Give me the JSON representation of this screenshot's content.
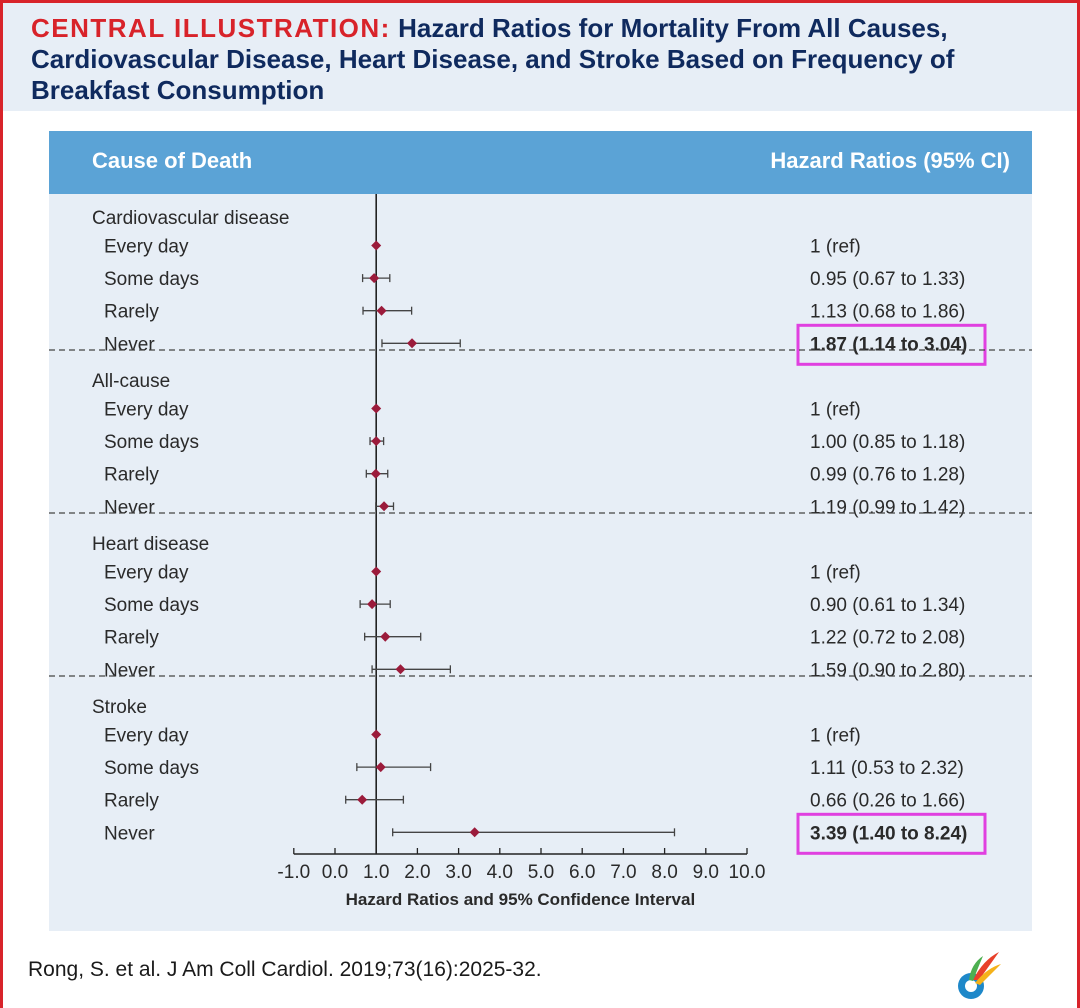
{
  "title": {
    "lead": "CENTRAL ILLUSTRATION:",
    "text": "Hazard Ratios for Mortality From All Causes, Cardiovascular Disease, Heart Disease, and Stroke Based on Frequency of Breakfast Consumption"
  },
  "table_header": {
    "left": "Cause of Death",
    "right": "Hazard Ratios (95% CI)"
  },
  "colors": {
    "title_red": "#d8232a",
    "title_navy": "#0f2a5e",
    "header_blue": "#5ba3d6",
    "panel_bg": "#e7eef6",
    "marker": "#9b1b3b",
    "highlight": "#e040e0"
  },
  "chart_data": {
    "type": "forest",
    "xlabel": "Hazard Ratios and 95% Confidence Interval",
    "xlim": [
      -1.0,
      10.0
    ],
    "xticks": [
      "-1.0",
      "0.0",
      "1.0",
      "2.0",
      "3.0",
      "4.0",
      "5.0",
      "6.0",
      "7.0",
      "8.0",
      "9.0",
      "10.0"
    ],
    "reference_line": 1.0,
    "groups": [
      {
        "name": "Cardiovascular disease",
        "rows": [
          {
            "label": "Every day",
            "hr": 1.0,
            "lo": null,
            "hi": null,
            "text": "1 (ref)",
            "highlight": false
          },
          {
            "label": "Some days",
            "hr": 0.95,
            "lo": 0.67,
            "hi": 1.33,
            "text": "0.95 (0.67 to 1.33)",
            "highlight": false
          },
          {
            "label": "Rarely",
            "hr": 1.13,
            "lo": 0.68,
            "hi": 1.86,
            "text": "1.13 (0.68 to 1.86)",
            "highlight": false
          },
          {
            "label": "Never",
            "hr": 1.87,
            "lo": 1.14,
            "hi": 3.04,
            "text": "1.87 (1.14 to 3.04)",
            "highlight": true
          }
        ]
      },
      {
        "name": "All-cause",
        "rows": [
          {
            "label": "Every day",
            "hr": 1.0,
            "lo": null,
            "hi": null,
            "text": "1 (ref)",
            "highlight": false
          },
          {
            "label": "Some days",
            "hr": 1.0,
            "lo": 0.85,
            "hi": 1.18,
            "text": "1.00 (0.85 to 1.18)",
            "highlight": false
          },
          {
            "label": "Rarely",
            "hr": 0.99,
            "lo": 0.76,
            "hi": 1.28,
            "text": "0.99 (0.76 to 1.28)",
            "highlight": false
          },
          {
            "label": "Never",
            "hr": 1.19,
            "lo": 0.99,
            "hi": 1.42,
            "text": "1.19 (0.99 to 1.42)",
            "highlight": false
          }
        ]
      },
      {
        "name": "Heart disease",
        "rows": [
          {
            "label": "Every day",
            "hr": 1.0,
            "lo": null,
            "hi": null,
            "text": "1 (ref)",
            "highlight": false
          },
          {
            "label": "Some days",
            "hr": 0.9,
            "lo": 0.61,
            "hi": 1.34,
            "text": "0.90 (0.61 to 1.34)",
            "highlight": false
          },
          {
            "label": "Rarely",
            "hr": 1.22,
            "lo": 0.72,
            "hi": 2.08,
            "text": "1.22 (0.72 to 2.08)",
            "highlight": false
          },
          {
            "label": "Never",
            "hr": 1.59,
            "lo": 0.9,
            "hi": 2.8,
            "text": "1.59 (0.90 to 2.80)",
            "highlight": false
          }
        ]
      },
      {
        "name": "Stroke",
        "rows": [
          {
            "label": "Every day",
            "hr": 1.0,
            "lo": null,
            "hi": null,
            "text": "1 (ref)",
            "highlight": false
          },
          {
            "label": "Some days",
            "hr": 1.11,
            "lo": 0.53,
            "hi": 2.32,
            "text": "1.11 (0.53 to 2.32)",
            "highlight": false
          },
          {
            "label": "Rarely",
            "hr": 0.66,
            "lo": 0.26,
            "hi": 1.66,
            "text": "0.66 (0.26 to 1.66)",
            "highlight": false
          },
          {
            "label": "Never",
            "hr": 3.39,
            "lo": 1.4,
            "hi": 8.24,
            "text": "3.39 (1.40 to 8.24)",
            "highlight": true
          }
        ]
      }
    ]
  },
  "citation": "Rong, S. et al. J Am Coll Cardiol. 2019;73(16):2025-32.",
  "logo_icon": "journal-logo-icon"
}
